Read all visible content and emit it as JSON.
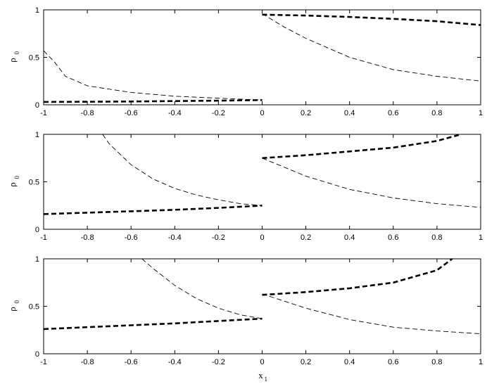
{
  "chart_data": [
    {
      "type": "line",
      "title": "",
      "xlabel": "",
      "ylabel": "ρ",
      "ylabel_sub": "0",
      "xlim": [
        -1,
        1
      ],
      "ylim": [
        0,
        1
      ],
      "xticks": [
        "-1",
        "-0.8",
        "-0.6",
        "-0.4",
        "-0.2",
        "0",
        "0.2",
        "0.4",
        "0.6",
        "0.8",
        "1"
      ],
      "yticks": [
        "0",
        "0.5",
        "1"
      ],
      "grid": false,
      "series": [
        {
          "style": "thick-dashed",
          "x": [
            -1,
            -0.8,
            -0.6,
            -0.4,
            -0.2,
            0
          ],
          "y": [
            0.03,
            0.032,
            0.035,
            0.039,
            0.044,
            0.05
          ]
        },
        {
          "style": "thick-dashed",
          "x": [
            0,
            0.2,
            0.4,
            0.6,
            0.8,
            1
          ],
          "y": [
            0.95,
            0.94,
            0.925,
            0.905,
            0.88,
            0.84
          ]
        },
        {
          "style": "thin-dashed",
          "x": [
            -1,
            -0.95,
            -0.9,
            -0.8,
            -0.6,
            -0.4,
            -0.2,
            0
          ],
          "y": [
            0.57,
            0.45,
            0.3,
            0.2,
            0.13,
            0.09,
            0.07,
            0.05
          ]
        },
        {
          "style": "thin-dashed",
          "x": [
            0,
            0.1,
            0.2,
            0.4,
            0.6,
            0.8,
            1
          ],
          "y": [
            0.96,
            0.82,
            0.7,
            0.5,
            0.37,
            0.3,
            0.25
          ]
        }
      ]
    },
    {
      "type": "line",
      "title": "",
      "xlabel": "",
      "ylabel": "ρ",
      "ylabel_sub": "0",
      "xlim": [
        -1,
        1
      ],
      "ylim": [
        0,
        1
      ],
      "xticks": [
        "-1",
        "-0.8",
        "-0.6",
        "-0.4",
        "-0.2",
        "0",
        "0.2",
        "0.4",
        "0.6",
        "0.8",
        "1"
      ],
      "yticks": [
        "0",
        "0.5",
        "1"
      ],
      "grid": false,
      "series": [
        {
          "style": "thick-dashed",
          "x": [
            -1,
            -0.8,
            -0.6,
            -0.4,
            -0.2,
            0
          ],
          "y": [
            0.16,
            0.175,
            0.19,
            0.205,
            0.225,
            0.25
          ]
        },
        {
          "style": "thick-dashed",
          "x": [
            0,
            0.2,
            0.4,
            0.6,
            0.8,
            0.91
          ],
          "y": [
            0.75,
            0.78,
            0.82,
            0.86,
            0.93,
            1.0
          ]
        },
        {
          "style": "thin-dashed",
          "x": [
            -0.73,
            -0.7,
            -0.6,
            -0.5,
            -0.4,
            -0.3,
            -0.2,
            -0.1,
            0
          ],
          "y": [
            1.0,
            0.9,
            0.68,
            0.53,
            0.43,
            0.36,
            0.31,
            0.27,
            0.25
          ]
        },
        {
          "style": "thin-dashed",
          "x": [
            0,
            0.2,
            0.4,
            0.6,
            0.8,
            1
          ],
          "y": [
            0.75,
            0.56,
            0.42,
            0.33,
            0.27,
            0.23
          ]
        }
      ]
    },
    {
      "type": "line",
      "title": "",
      "xlabel": "x",
      "xlabel_sub": "1",
      "ylabel": "ρ",
      "ylabel_sub": "0",
      "xlim": [
        -1,
        1
      ],
      "ylim": [
        0,
        1
      ],
      "xticks": [
        "-1",
        "-0.8",
        "-0.6",
        "-0.4",
        "-0.2",
        "0",
        "0.2",
        "0.4",
        "0.6",
        "0.8",
        "1"
      ],
      "yticks": [
        "0",
        "0.5",
        "1"
      ],
      "grid": false,
      "series": [
        {
          "style": "thick-dashed",
          "x": [
            -1,
            -0.8,
            -0.6,
            -0.4,
            -0.2,
            0
          ],
          "y": [
            0.26,
            0.28,
            0.3,
            0.32,
            0.345,
            0.37
          ]
        },
        {
          "style": "thick-dashed",
          "x": [
            0,
            0.2,
            0.4,
            0.6,
            0.8,
            0.87
          ],
          "y": [
            0.62,
            0.65,
            0.69,
            0.75,
            0.88,
            1.0
          ]
        },
        {
          "style": "thin-dashed",
          "x": [
            -0.55,
            -0.5,
            -0.4,
            -0.3,
            -0.2,
            -0.1,
            0
          ],
          "y": [
            1.0,
            0.9,
            0.72,
            0.58,
            0.48,
            0.41,
            0.37
          ]
        },
        {
          "style": "thin-dashed",
          "x": [
            0,
            0.2,
            0.4,
            0.6,
            0.8,
            1
          ],
          "y": [
            0.63,
            0.48,
            0.36,
            0.28,
            0.24,
            0.21
          ]
        }
      ]
    }
  ]
}
